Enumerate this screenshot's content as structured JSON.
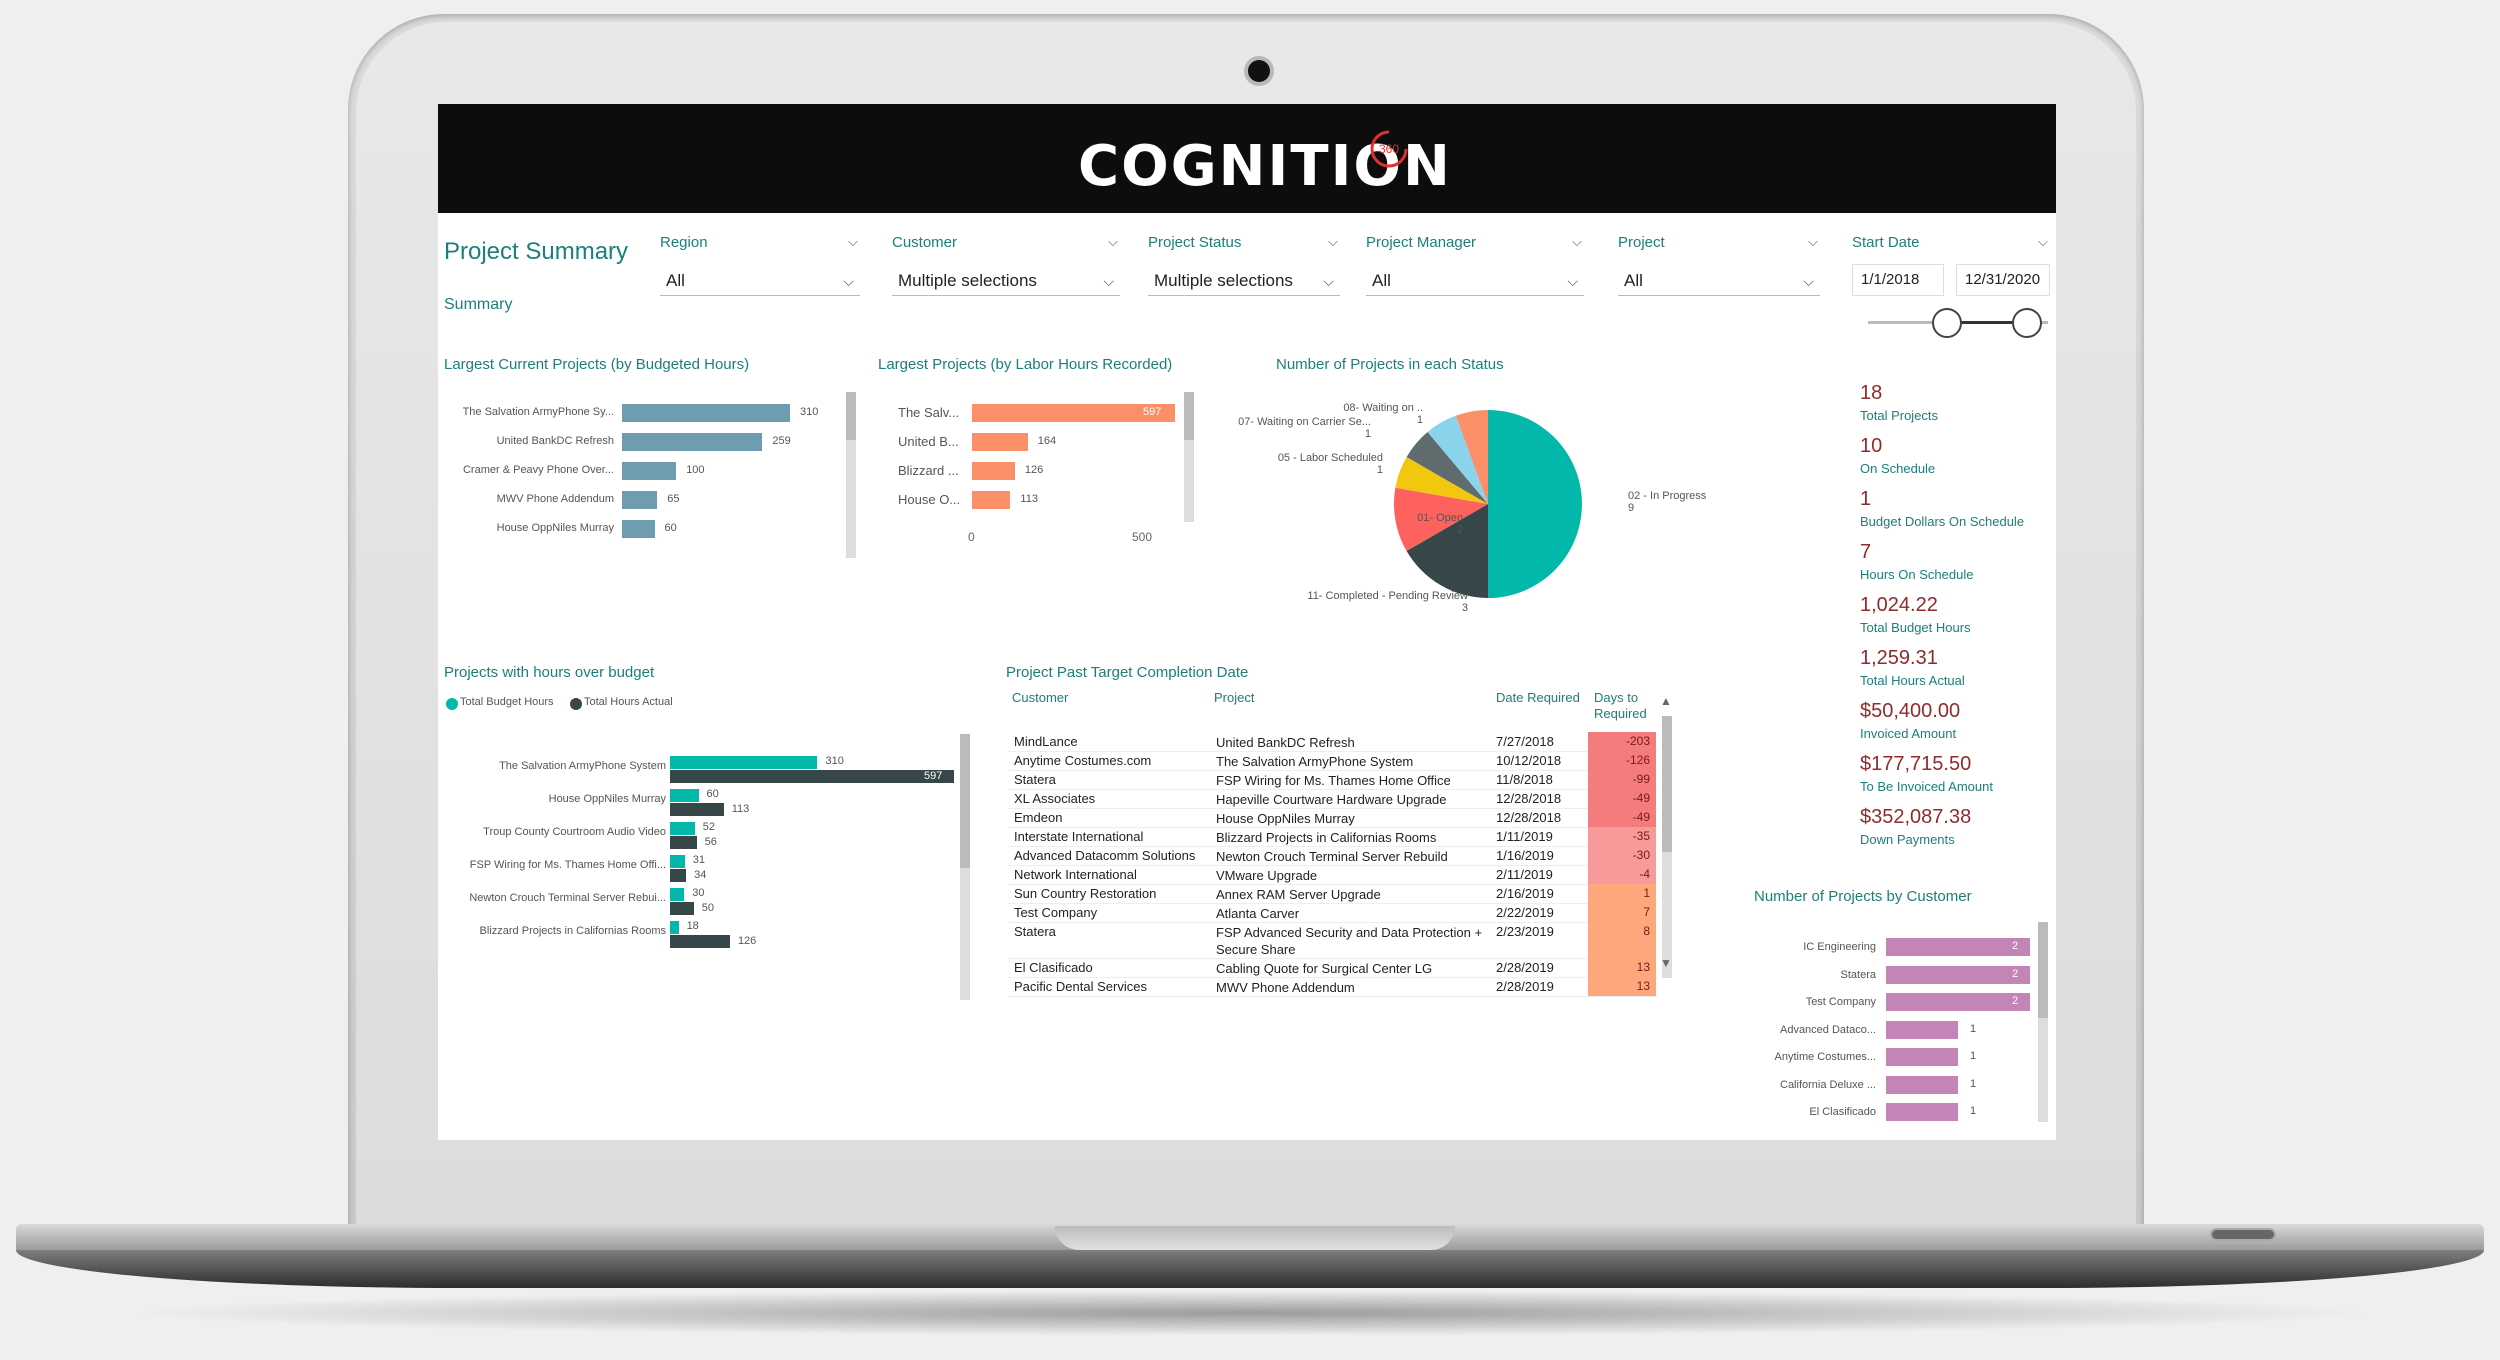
{
  "brand": {
    "name": "COGNITION",
    "mark": "360"
  },
  "page": {
    "title": "Project Summary",
    "subtitle": "Summary"
  },
  "slicers": [
    {
      "label": "Region",
      "value": "All"
    },
    {
      "label": "Customer",
      "value": "Multiple selections"
    },
    {
      "label": "Project Status",
      "value": "Multiple selections"
    },
    {
      "label": "Project Manager",
      "value": "All"
    },
    {
      "label": "Project",
      "value": "All"
    }
  ],
  "start_date": {
    "label": "Start Date",
    "from": "1/1/2018",
    "to": "12/31/2020"
  },
  "kpis": [
    {
      "value": "18",
      "label": "Total Projects"
    },
    {
      "value": "10",
      "label": "On Schedule"
    },
    {
      "value": "1",
      "label": "Budget Dollars On Schedule"
    },
    {
      "value": "7",
      "label": "Hours On Schedule"
    },
    {
      "value": "1,024.22",
      "label": "Total Budget Hours"
    },
    {
      "value": "1,259.31",
      "label": "Total Hours Actual"
    },
    {
      "value": "$50,400.00",
      "label": "Invoiced Amount"
    },
    {
      "value": "$177,715.50",
      "label": "To Be Invoiced Amount"
    },
    {
      "value": "$352,087.38",
      "label": "Down Payments"
    }
  ],
  "colors": {
    "teal": "#01b8aa",
    "dark": "#374649",
    "salmon": "#fd8f68",
    "steel": "#6e9cb1",
    "mauve": "#c285b5",
    "red": "#fd625e",
    "yellow": "#f2c80f",
    "sky": "#8ad4eb",
    "text_teal": "#1b7f7b",
    "kpi_red": "#8e2c2c"
  },
  "chart_data": [
    {
      "id": "budgeted",
      "type": "bar",
      "title": "Largest Current Projects (by Budgeted Hours)",
      "categories": [
        "The Salvation ArmyPhone Sy...",
        "United BankDC Refresh",
        "Cramer & Peavy Phone Over...",
        "MWV Phone Addendum",
        "House OppNiles Murray"
      ],
      "values": [
        310,
        259,
        100,
        65,
        60
      ]
    },
    {
      "id": "labor",
      "type": "bar",
      "title": "Largest Projects (by Labor Hours Recorded)",
      "categories": [
        "The Salv...",
        "United B...",
        "Blizzard ...",
        "House O..."
      ],
      "values": [
        597,
        164,
        126,
        113
      ],
      "x_ticks": [
        "0",
        "500"
      ]
    },
    {
      "id": "status",
      "type": "pie",
      "title": "Number of Projects in each Status",
      "slices": [
        {
          "label": "02 - In Progress",
          "count": "9",
          "value": 9,
          "color": "#01b8aa"
        },
        {
          "label": "11- Completed - Pending Review",
          "count": "3",
          "value": 3,
          "color": "#374649"
        },
        {
          "label": "01- Open",
          "count": "2",
          "value": 2,
          "color": "#fd625e"
        },
        {
          "label": "05 - Labor Scheduled",
          "count": "1",
          "value": 1,
          "color": "#f2c80f"
        },
        {
          "label": "07- Waiting on Carrier Se...",
          "count": "1",
          "value": 1,
          "color": "#5f6b6d"
        },
        {
          "label": "08- Waiting on ..",
          "count": "1",
          "value": 1,
          "color": "#8ad4eb"
        },
        {
          "label": "",
          "count": "",
          "value": 1,
          "color": "#fd8f68"
        }
      ]
    },
    {
      "id": "overbudget",
      "type": "bar",
      "title": "Projects with hours over budget",
      "legend": [
        "Total Budget Hours",
        "Total Hours Actual"
      ],
      "categories": [
        "The Salvation ArmyPhone System",
        "House OppNiles Murray",
        "Troup County Courtroom Audio Video",
        "FSP Wiring for Ms. Thames Home Offi...",
        "Newton Crouch Terminal Server Rebui...",
        "Blizzard Projects in Californias Rooms"
      ],
      "series": [
        {
          "name": "Total Budget Hours",
          "values": [
            310,
            60,
            52,
            31,
            30,
            18
          ]
        },
        {
          "name": "Total Hours Actual",
          "values": [
            597,
            113,
            56,
            34,
            50,
            126
          ]
        }
      ]
    },
    {
      "id": "customers",
      "type": "bar",
      "title": "Number of Projects by Customer",
      "categories": [
        "IC Engineering",
        "Statera",
        "Test Company",
        "Advanced Dataco...",
        "Anytime Costumes...",
        "California Deluxe ...",
        "El Clasificado"
      ],
      "values": [
        2,
        2,
        2,
        1,
        1,
        1,
        1
      ]
    }
  ],
  "table": {
    "title": "Project Past Target Completion Date",
    "headers": [
      "Customer",
      "Project",
      "Date Required",
      "Days to Required"
    ],
    "rows": [
      [
        "MindLance",
        "United BankDC Refresh",
        "7/27/2018",
        "-203"
      ],
      [
        "Anytime Costumes.com",
        "The Salvation ArmyPhone System",
        "10/12/2018",
        "-126"
      ],
      [
        "Statera",
        "FSP Wiring for Ms. Thames Home Office",
        "11/8/2018",
        "-99"
      ],
      [
        "XL Associates",
        "Hapeville Courtware Hardware Upgrade",
        "12/28/2018",
        "-49"
      ],
      [
        "Emdeon",
        "House OppNiles Murray",
        "12/28/2018",
        "-49"
      ],
      [
        "Interstate International",
        "Blizzard Projects in Californias Rooms",
        "1/11/2019",
        "-35"
      ],
      [
        "Advanced Datacomm Solutions",
        "Newton Crouch Terminal Server Rebuild",
        "1/16/2019",
        "-30"
      ],
      [
        "Network International",
        "VMware Upgrade",
        "2/11/2019",
        "-4"
      ],
      [
        "Sun Country Restoration",
        "Annex RAM Server Upgrade",
        "2/16/2019",
        "1"
      ],
      [
        "Test Company",
        "Atlanta Carver",
        "2/22/2019",
        "7"
      ],
      [
        "Statera",
        "FSP Advanced Security and Data Protection + Secure Share",
        "2/23/2019",
        "8"
      ],
      [
        "El Clasificado",
        "Cabling Quote for Surgical Center LG",
        "2/28/2019",
        "13"
      ],
      [
        "Pacific Dental Services",
        "MWV Phone Addendum",
        "2/28/2019",
        "13"
      ]
    ]
  }
}
